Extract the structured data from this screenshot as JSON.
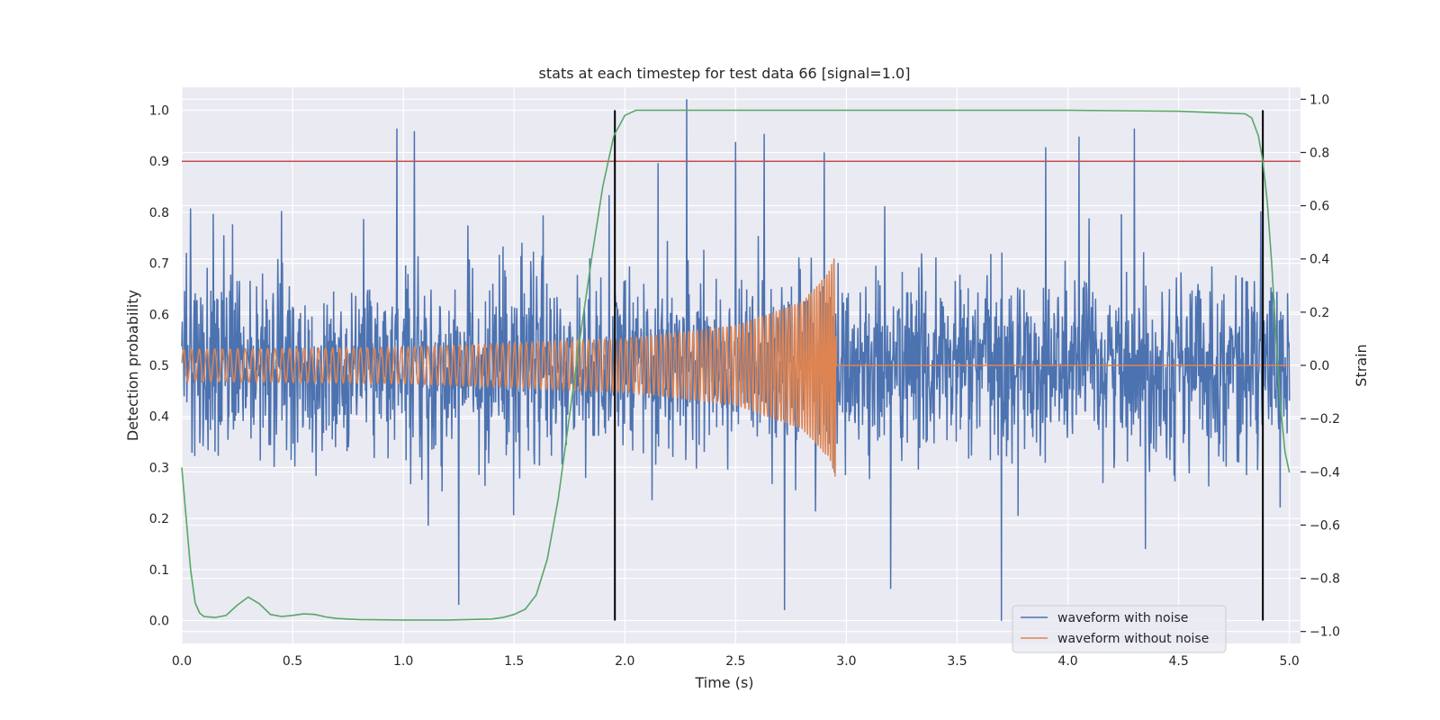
{
  "chart_data": {
    "type": "line",
    "title": "stats at each timestep for test data 66 [signal=1.0]",
    "xlabel": "Time (s)",
    "ylabel": "Detection probability",
    "y2label": "Strain",
    "xlim": [
      0.0,
      5.05
    ],
    "ylim": [
      -0.045,
      1.045
    ],
    "y2lim": [
      -1.045,
      1.045
    ],
    "grid": true,
    "legend_position": "lower-right",
    "x_ticks": [
      "0.0",
      "0.5",
      "1.0",
      "1.5",
      "2.0",
      "2.5",
      "3.0",
      "3.5",
      "4.0",
      "4.5",
      "5.0"
    ],
    "x_tick_values": [
      0.0,
      0.5,
      1.0,
      1.5,
      2.0,
      2.5,
      3.0,
      3.5,
      4.0,
      4.5,
      5.0
    ],
    "y_ticks": [
      "0.0",
      "0.1",
      "0.2",
      "0.3",
      "0.4",
      "0.5",
      "0.6",
      "0.7",
      "0.8",
      "0.9",
      "1.0"
    ],
    "y_tick_values": [
      0.0,
      0.1,
      0.2,
      0.3,
      0.4,
      0.5,
      0.6,
      0.7,
      0.8,
      0.9,
      1.0
    ],
    "y2_ticks": [
      "−1.0",
      "−0.8",
      "−0.6",
      "−0.4",
      "−0.2",
      "0.0",
      "0.2",
      "0.4",
      "0.6",
      "0.8",
      "1.0"
    ],
    "y2_tick_values": [
      -1.0,
      -0.8,
      -0.6,
      -0.4,
      -0.2,
      0.0,
      0.2,
      0.4,
      0.6,
      0.8,
      1.0
    ],
    "threshold": {
      "y": 0.9,
      "color": "#c44e52"
    },
    "vlines": [
      {
        "x": 1.955,
        "ymin": 0.0,
        "ymax": 1.0,
        "color": "#000000"
      },
      {
        "x": 4.88,
        "ymin": 0.0,
        "ymax": 1.0,
        "color": "#000000"
      }
    ],
    "series": [
      {
        "name": "waveform with noise",
        "axis": "right",
        "color": "#4c72b0",
        "x_range": [
          0.0,
          5.0
        ],
        "noise_std": 0.17,
        "spikes": [
          {
            "x": 0.04,
            "y": 0.59
          },
          {
            "x": 0.23,
            "y": 0.53
          },
          {
            "x": 0.45,
            "y": 0.58
          },
          {
            "x": 0.82,
            "y": 0.55
          },
          {
            "x": 0.97,
            "y": 0.89
          },
          {
            "x": 1.05,
            "y": 0.88
          },
          {
            "x": 1.25,
            "y": -0.9
          },
          {
            "x": 1.93,
            "y": 0.64
          },
          {
            "x": 2.15,
            "y": 0.76
          },
          {
            "x": 2.28,
            "y": 1.0
          },
          {
            "x": 2.5,
            "y": 0.84
          },
          {
            "x": 2.63,
            "y": 0.87
          },
          {
            "x": 2.72,
            "y": -0.92
          },
          {
            "x": 2.9,
            "y": 0.8
          },
          {
            "x": 3.2,
            "y": -0.84
          },
          {
            "x": 3.7,
            "y": -0.96
          },
          {
            "x": 3.9,
            "y": 0.82
          },
          {
            "x": 4.05,
            "y": -0.73
          },
          {
            "x": 4.05,
            "y": 0.86
          },
          {
            "x": 4.3,
            "y": 0.89
          },
          {
            "x": 4.35,
            "y": -0.69
          }
        ]
      },
      {
        "name": "waveform without noise",
        "axis": "right",
        "color": "#dd8452",
        "envelope": {
          "x": [
            0.0,
            1.0,
            2.0,
            2.5,
            2.8,
            2.92,
            2.95,
            2.955,
            5.0
          ],
          "amp": [
            0.06,
            0.068,
            0.1,
            0.15,
            0.24,
            0.35,
            0.42,
            0.0,
            0.0
          ]
        },
        "freq_hz": {
          "x": [
            0.0,
            1.0,
            2.0,
            2.6,
            2.95
          ],
          "f": [
            28,
            33,
            42,
            58,
            95
          ]
        }
      },
      {
        "name": "",
        "axis": "left",
        "color": "#55a868",
        "x": [
          0.0,
          0.02,
          0.04,
          0.06,
          0.08,
          0.1,
          0.15,
          0.2,
          0.25,
          0.3,
          0.35,
          0.4,
          0.45,
          0.5,
          0.55,
          0.6,
          0.65,
          0.7,
          0.8,
          1.0,
          1.2,
          1.4,
          1.45,
          1.5,
          1.55,
          1.6,
          1.65,
          1.7,
          1.75,
          1.8,
          1.85,
          1.9,
          1.95,
          2.0,
          2.05,
          2.5,
          3.0,
          3.5,
          4.0,
          4.5,
          4.8,
          4.83,
          4.86,
          4.88,
          4.9,
          4.92,
          4.94,
          4.96,
          4.98,
          5.0
        ],
        "y": [
          0.3,
          0.2,
          0.1,
          0.035,
          0.015,
          0.008,
          0.006,
          0.01,
          0.03,
          0.046,
          0.033,
          0.012,
          0.008,
          0.01,
          0.013,
          0.012,
          0.007,
          0.004,
          0.002,
          0.001,
          0.001,
          0.003,
          0.006,
          0.012,
          0.022,
          0.05,
          0.12,
          0.24,
          0.4,
          0.56,
          0.71,
          0.85,
          0.95,
          0.99,
          1.0,
          1.0,
          1.0,
          1.0,
          1.0,
          0.998,
          0.993,
          0.985,
          0.95,
          0.9,
          0.82,
          0.7,
          0.55,
          0.42,
          0.33,
          0.29
        ]
      }
    ]
  }
}
